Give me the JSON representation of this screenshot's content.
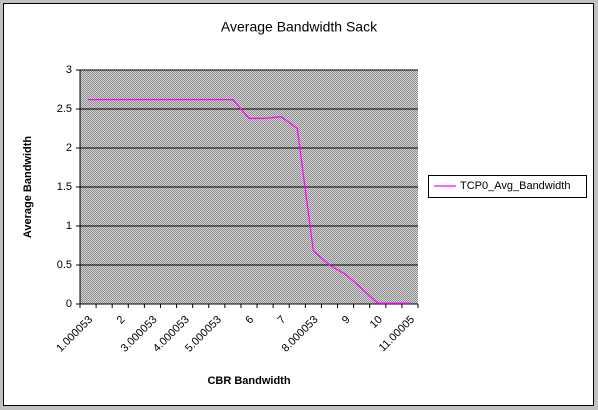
{
  "chart_data": {
    "type": "line",
    "title": "Average Bandwidth Sack",
    "x_label": "CBR Bandwidth",
    "y_label": "Average Bandwidth",
    "categories": [
      "1.000053",
      null,
      "2",
      null,
      "3.000053",
      null,
      "4.000053",
      null,
      "5.000053",
      null,
      "6",
      null,
      "7",
      null,
      "8.000053",
      null,
      "9",
      null,
      "10",
      null,
      "11.00005"
    ],
    "series": [
      {
        "name": "TCP0_Avg_Bandwidth",
        "color": "#ff00ff",
        "values": [
          2.62,
          2.62,
          2.62,
          2.62,
          2.62,
          2.62,
          2.62,
          2.62,
          2.62,
          2.62,
          2.38,
          2.38,
          2.4,
          2.25,
          0.68,
          0.5,
          0.38,
          0.2,
          0.01,
          0.01,
          0.01
        ]
      }
    ],
    "ylim": [
      0,
      3
    ],
    "yticks": [
      0,
      0.5,
      1,
      1.5,
      2,
      2.5,
      3
    ],
    "grid": true,
    "legend": "right"
  }
}
